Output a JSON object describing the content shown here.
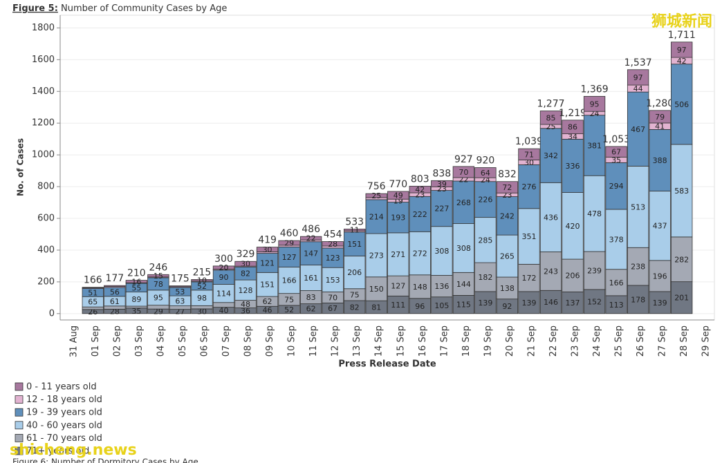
{
  "chart_data": {
    "type": "stacked_bar",
    "figure_label": "Figure 5:",
    "title": "Number of Community Cases by Age",
    "x_label": "Press Release Date",
    "y_label": "No. of Cases",
    "categories": [
      "31 Aug",
      "01 Sep",
      "02 Sep",
      "03 Sep",
      "04 Sep",
      "05 Sep",
      "06 Sep",
      "07 Sep",
      "08 Sep",
      "09 Sep",
      "10 Sep",
      "11 Sep",
      "12 Sep",
      "13 Sep",
      "14 Sep",
      "15 Sep",
      "16 Sep",
      "17 Sep",
      "18 Sep",
      "19 Sep",
      "20 Sep",
      "21 Sep",
      "22 Sep",
      "23 Sep",
      "24 Sep",
      "25 Sep",
      "26 Sep",
      "27 Sep",
      "28 Sep",
      "29 Sep"
    ],
    "series": [
      {
        "name": "71+ years old",
        "color": "#707783",
        "values": [
          null,
          26,
          28,
          35,
          29,
          27,
          30,
          40,
          36,
          46,
          52,
          62,
          67,
          82,
          81,
          111,
          96,
          105,
          115,
          139,
          92,
          139,
          146,
          137,
          152,
          113,
          178,
          139,
          201,
          null
        ],
        "value_labels": [
          null,
          "26",
          "28",
          "35",
          "29",
          "27",
          "30",
          "40",
          "36",
          "46",
          "52",
          "62",
          "67",
          "82",
          "81",
          "111",
          "96",
          "105",
          "115",
          "139",
          "92",
          "139",
          "146",
          "137",
          "152",
          "113",
          "178",
          "139",
          "201",
          null
        ]
      },
      {
        "name": "61 - 70 years old",
        "color": "#a4a9b4",
        "values": [
          null,
          16,
          20,
          12,
          24,
          22,
          20,
          30,
          48,
          62,
          75,
          83,
          70,
          75,
          150,
          127,
          148,
          136,
          144,
          182,
          138,
          172,
          243,
          206,
          239,
          166,
          238,
          196,
          282,
          null
        ],
        "value_labels": [
          null,
          null,
          null,
          null,
          null,
          null,
          null,
          null,
          "48",
          "62",
          "75",
          "83",
          "70",
          "75",
          "150",
          "127",
          "148",
          "136",
          "144",
          "182",
          "138",
          "172",
          "243",
          "206",
          "239",
          "166",
          "238",
          "196",
          "282",
          null
        ]
      },
      {
        "name": "40 - 60 years old",
        "color": "#a9cde9",
        "values": [
          null,
          65,
          61,
          89,
          95,
          63,
          98,
          114,
          128,
          151,
          166,
          161,
          153,
          206,
          273,
          271,
          272,
          308,
          308,
          285,
          265,
          351,
          436,
          420,
          478,
          378,
          513,
          437,
          583,
          null
        ],
        "value_labels": [
          null,
          "65",
          "61",
          "89",
          "95",
          "63",
          "98",
          "114",
          "128",
          "151",
          "166",
          "161",
          "153",
          "206",
          "273",
          "271",
          "272",
          "308",
          "308",
          "285",
          "265",
          "351",
          "436",
          "420",
          "478",
          "378",
          "513",
          "437",
          "583",
          null
        ]
      },
      {
        "name": "19 - 39 years old",
        "color": "#5f8fbb",
        "values": [
          null,
          51,
          56,
          55,
          78,
          53,
          52,
          90,
          82,
          121,
          127,
          147,
          123,
          151,
          214,
          193,
          222,
          227,
          268,
          226,
          242,
          276,
          342,
          336,
          381,
          294,
          467,
          388,
          506,
          null
        ],
        "value_labels": [
          null,
          "51",
          "56",
          "55",
          "78",
          "53",
          "52",
          "90",
          "82",
          "121",
          "127",
          "147",
          "123",
          "151",
          "214",
          "193",
          "222",
          "227",
          "268",
          "226",
          "242",
          "276",
          "342",
          "336",
          "381",
          "294",
          "467",
          "388",
          "506",
          null
        ]
      },
      {
        "name": "12 - 18 years old",
        "color": "#e2b3d1",
        "values": [
          null,
          4,
          6,
          3,
          5,
          5,
          5,
          6,
          5,
          9,
          11,
          11,
          13,
          8,
          13,
          19,
          23,
          23,
          22,
          24,
          23,
          30,
          25,
          34,
          24,
          35,
          44,
          41,
          42,
          null
        ],
        "value_labels": [
          null,
          null,
          null,
          null,
          null,
          null,
          null,
          null,
          null,
          null,
          null,
          null,
          null,
          null,
          null,
          "19",
          "23",
          "23",
          "22",
          "24",
          "23",
          "30",
          "25",
          "34",
          "24",
          "35",
          "44",
          "41",
          "42",
          null
        ]
      },
      {
        "name": "0 - 11 years old",
        "color": "#a7789e",
        "values": [
          null,
          4,
          6,
          16,
          15,
          5,
          10,
          20,
          30,
          30,
          29,
          22,
          28,
          11,
          25,
          49,
          42,
          39,
          70,
          64,
          72,
          71,
          85,
          86,
          95,
          67,
          97,
          79,
          97,
          null
        ],
        "value_labels": [
          null,
          null,
          null,
          "16",
          "15",
          null,
          "10",
          "20",
          "30",
          "30",
          "29",
          "22",
          "28",
          "11",
          "25",
          "49",
          "42",
          "39",
          "70",
          "64",
          "72",
          "71",
          "85",
          "86",
          "95",
          "67",
          "97",
          "79",
          "97",
          null
        ]
      }
    ],
    "totals": [
      null,
      166,
      177,
      210,
      246,
      175,
      215,
      300,
      329,
      419,
      460,
      486,
      454,
      533,
      756,
      770,
      803,
      838,
      927,
      920,
      832,
      1039,
      1277,
      1219,
      1369,
      1053,
      1537,
      1280,
      1711,
      null
    ],
    "total_labels": [
      null,
      "166",
      "177",
      "210",
      "246",
      "175",
      "215",
      "300",
      "329",
      "419",
      "460",
      "486",
      "454",
      "533",
      "756",
      "770",
      "803",
      "838",
      "927",
      "920",
      "832",
      "1,039",
      "1,277",
      "1,219",
      "1,369",
      "1,053",
      "1,537",
      "1,280",
      "1,711",
      null
    ],
    "ylim": [
      -40,
      1880
    ],
    "yticks": [
      0,
      200,
      400,
      600,
      800,
      1000,
      1200,
      1400,
      1600,
      1800
    ],
    "grid": true,
    "legend_position": "bottom-left",
    "watermarks": [
      "狮城新闻",
      "shicheng.news"
    ],
    "next_caption": "Figure 6: Number of Dormitory Cases by Age"
  }
}
